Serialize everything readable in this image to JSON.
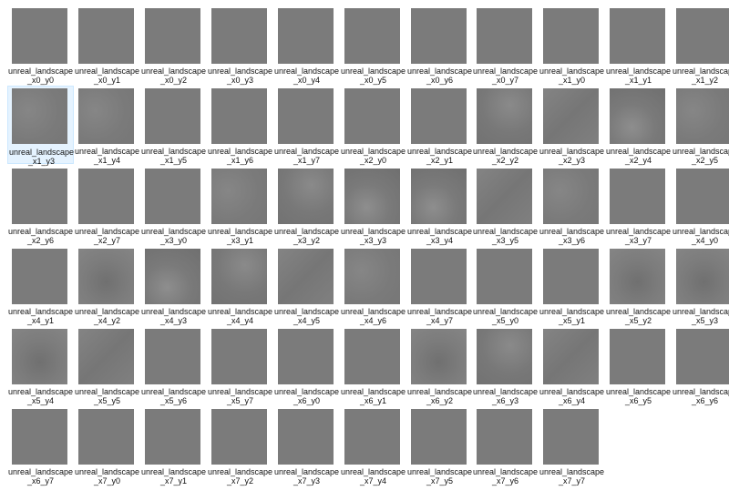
{
  "files": [
    {
      "name1": "unreal_landscape",
      "name2": "_x0_y0",
      "shade": "v0"
    },
    {
      "name1": "unreal_landscape",
      "name2": "_x0_y1",
      "shade": "v0"
    },
    {
      "name1": "unreal_landscape",
      "name2": "_x0_y2",
      "shade": "v0"
    },
    {
      "name1": "unreal_landscape",
      "name2": "_x0_y3",
      "shade": "v0"
    },
    {
      "name1": "unreal_landscape",
      "name2": "_x0_y4",
      "shade": "v0"
    },
    {
      "name1": "unreal_landscape",
      "name2": "_x0_y5",
      "shade": "v0"
    },
    {
      "name1": "unreal_landscape",
      "name2": "_x0_y6",
      "shade": "v0"
    },
    {
      "name1": "unreal_landscape",
      "name2": "_x0_y7",
      "shade": "v0"
    },
    {
      "name1": "unreal_landscape",
      "name2": "_x1_y0",
      "shade": "v0"
    },
    {
      "name1": "unreal_landscape",
      "name2": "_x1_y1",
      "shade": "v0"
    },
    {
      "name1": "unreal_landscape",
      "name2": "_x1_y2",
      "shade": "v0"
    },
    {
      "name1": "unreal_landscape",
      "name2": "_x1_y3",
      "shade": "v1",
      "selected": true
    },
    {
      "name1": "unreal_landscape",
      "name2": "_x1_y4",
      "shade": "v1"
    },
    {
      "name1": "unreal_landscape",
      "name2": "_x1_y5",
      "shade": "v0"
    },
    {
      "name1": "unreal_landscape",
      "name2": "_x1_y6",
      "shade": "v0"
    },
    {
      "name1": "unreal_landscape",
      "name2": "_x1_y7",
      "shade": "v0"
    },
    {
      "name1": "unreal_landscape",
      "name2": "_x2_y0",
      "shade": "v0"
    },
    {
      "name1": "unreal_landscape",
      "name2": "_x2_y1",
      "shade": "v0"
    },
    {
      "name1": "unreal_landscape",
      "name2": "_x2_y2",
      "shade": "v2"
    },
    {
      "name1": "unreal_landscape",
      "name2": "_x2_y3",
      "shade": "v4"
    },
    {
      "name1": "unreal_landscape",
      "name2": "_x2_y4",
      "shade": "v5"
    },
    {
      "name1": "unreal_landscape",
      "name2": "_x2_y5",
      "shade": "v1"
    },
    {
      "name1": "unreal_landscape",
      "name2": "_x2_y6",
      "shade": "v0"
    },
    {
      "name1": "unreal_landscape",
      "name2": "_x2_y7",
      "shade": "v0"
    },
    {
      "name1": "unreal_landscape",
      "name2": "_x3_y0",
      "shade": "v0"
    },
    {
      "name1": "unreal_landscape",
      "name2": "_x3_y1",
      "shade": "v1"
    },
    {
      "name1": "unreal_landscape",
      "name2": "_x3_y2",
      "shade": "v2"
    },
    {
      "name1": "unreal_landscape",
      "name2": "_x3_y3",
      "shade": "v5"
    },
    {
      "name1": "unreal_landscape",
      "name2": "_x3_y4",
      "shade": "v5"
    },
    {
      "name1": "unreal_landscape",
      "name2": "_x3_y5",
      "shade": "v4"
    },
    {
      "name1": "unreal_landscape",
      "name2": "_x3_y6",
      "shade": "v1"
    },
    {
      "name1": "unreal_landscape",
      "name2": "_x3_y7",
      "shade": "v0"
    },
    {
      "name1": "unreal_landscape",
      "name2": "_x4_y0",
      "shade": "v0"
    },
    {
      "name1": "unreal_landscape",
      "name2": "_x4_y1",
      "shade": "v0"
    },
    {
      "name1": "unreal_landscape",
      "name2": "_x4_y2",
      "shade": "v3"
    },
    {
      "name1": "unreal_landscape",
      "name2": "_x4_y3",
      "shade": "v5"
    },
    {
      "name1": "unreal_landscape",
      "name2": "_x4_y4",
      "shade": "v2"
    },
    {
      "name1": "unreal_landscape",
      "name2": "_x4_y5",
      "shade": "v4"
    },
    {
      "name1": "unreal_landscape",
      "name2": "_x4_y6",
      "shade": "v1"
    },
    {
      "name1": "unreal_landscape",
      "name2": "_x4_y7",
      "shade": "v0"
    },
    {
      "name1": "unreal_landscape",
      "name2": "_x5_y0",
      "shade": "v0"
    },
    {
      "name1": "unreal_landscape",
      "name2": "_x5_y1",
      "shade": "v0"
    },
    {
      "name1": "unreal_landscape",
      "name2": "_x5_y2",
      "shade": "v3"
    },
    {
      "name1": "unreal_landscape",
      "name2": "_x5_y3",
      "shade": "v3"
    },
    {
      "name1": "unreal_landscape",
      "name2": "_x5_y4",
      "shade": "v3"
    },
    {
      "name1": "unreal_landscape",
      "name2": "_x5_y5",
      "shade": "v4"
    },
    {
      "name1": "unreal_landscape",
      "name2": "_x5_y6",
      "shade": "v0"
    },
    {
      "name1": "unreal_landscape",
      "name2": "_x5_y7",
      "shade": "v0"
    },
    {
      "name1": "unreal_landscape",
      "name2": "_x6_y0",
      "shade": "v0"
    },
    {
      "name1": "unreal_landscape",
      "name2": "_x6_y1",
      "shade": "v0"
    },
    {
      "name1": "unreal_landscape",
      "name2": "_x6_y2",
      "shade": "v3"
    },
    {
      "name1": "unreal_landscape",
      "name2": "_x6_y3",
      "shade": "v2"
    },
    {
      "name1": "unreal_landscape",
      "name2": "_x6_y4",
      "shade": "v4"
    },
    {
      "name1": "unreal_landscape",
      "name2": "_x6_y5",
      "shade": "v0"
    },
    {
      "name1": "unreal_landscape",
      "name2": "_x6_y6",
      "shade": "v0"
    },
    {
      "name1": "unreal_landscape",
      "name2": "_x6_y7",
      "shade": "v0"
    },
    {
      "name1": "unreal_landscape",
      "name2": "_x7_y0",
      "shade": "v0"
    },
    {
      "name1": "unreal_landscape",
      "name2": "_x7_y1",
      "shade": "v0"
    },
    {
      "name1": "unreal_landscape",
      "name2": "_x7_y2",
      "shade": "v0"
    },
    {
      "name1": "unreal_landscape",
      "name2": "_x7_y3",
      "shade": "v0"
    },
    {
      "name1": "unreal_landscape",
      "name2": "_x7_y4",
      "shade": "v0"
    },
    {
      "name1": "unreal_landscape",
      "name2": "_x7_y5",
      "shade": "v0"
    },
    {
      "name1": "unreal_landscape",
      "name2": "_x7_y6",
      "shade": "v0"
    },
    {
      "name1": "unreal_landscape",
      "name2": "_x7_y7",
      "shade": "v0"
    }
  ]
}
